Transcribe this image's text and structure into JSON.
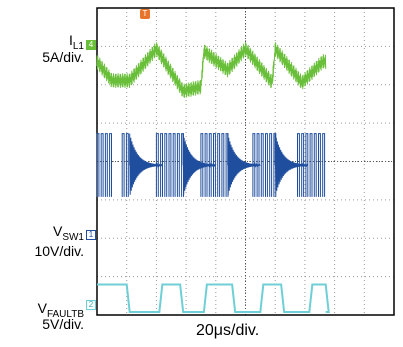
{
  "chart_data": {
    "type": "line",
    "title": "",
    "xlabel": "20μs/div.",
    "divisions": {
      "horizontal": 10,
      "vertical": 8
    },
    "grid": true,
    "time_per_div_us": 20,
    "trigger_marker": "T",
    "channels": [
      {
        "id": "1",
        "name": "I",
        "name_sub": "L1",
        "scale": "5A/div.",
        "marker": "4",
        "color": "#6abf3a",
        "x_us": [
          0,
          10,
          22,
          40,
          58,
          70,
          72,
          88,
          100,
          118,
          120,
          138,
          152,
          154
        ],
        "y_div": [
          0.4,
          -0.5,
          -0.5,
          1.0,
          -1.0,
          -0.8,
          0.9,
          0.0,
          1.0,
          -0.6,
          1.0,
          -0.6,
          0.4,
          0.4
        ],
        "ripple_div": 0.35
      },
      {
        "id": "2",
        "name": "V",
        "name_sub": "SW1",
        "scale": "10V/div.",
        "marker": "1",
        "color": "#1f4e9e",
        "high_div": 2.2,
        "low_div": -0.8,
        "switching_windows_us": [
          [
            0,
            10
          ],
          [
            17,
            22
          ],
          [
            40,
            58
          ],
          [
            70,
            88
          ],
          [
            105,
            120
          ],
          [
            135,
            152
          ]
        ],
        "ringing_start_us": [
          22,
          58,
          88,
          120
        ]
      },
      {
        "id": "3",
        "name": "V",
        "name_sub": "FAULTB",
        "scale": "5V/div.",
        "marker": "2",
        "color": "#6fcfd6",
        "high_div": 0.45,
        "low_div": -0.85,
        "high_intervals_us": [
          [
            0,
            20
          ],
          [
            44,
            56
          ],
          [
            74,
            91
          ],
          [
            112,
            124
          ],
          [
            145,
            154
          ]
        ]
      }
    ]
  }
}
